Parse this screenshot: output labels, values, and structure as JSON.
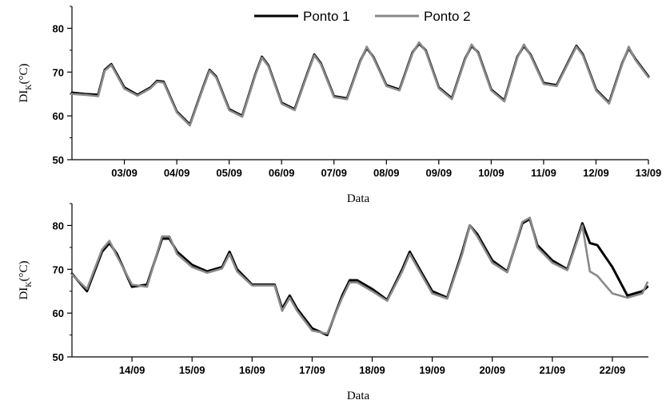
{
  "legend": [
    {
      "name": "Ponto 1",
      "color": "#000000"
    },
    {
      "name": "Ponto 2",
      "color": "#8a8a8a"
    }
  ],
  "chart_data": [
    {
      "type": "line",
      "xlabel": "Data",
      "ylabel": {
        "main": "DI",
        "sub": "K",
        "unit": "(°C)"
      },
      "ylim": [
        50,
        85
      ],
      "yticks": [
        50,
        60,
        70,
        80
      ],
      "xlim": [
        "2012-09-02T00:00",
        "2012-09-13T00:00"
      ],
      "xticks": [
        "03/09",
        "04/09",
        "05/09",
        "06/09",
        "07/09",
        "08/09",
        "09/09",
        "10/09",
        "11/09",
        "12/09",
        "13/09"
      ],
      "series": [
        {
          "name": "Ponto 1",
          "color": "#000000",
          "x": [
            "02/09 00:00",
            "02/09 06:00",
            "02/09 12:00",
            "02/09 15:00",
            "02/09 18:00",
            "03/09 00:00",
            "03/09 06:00",
            "03/09 12:00",
            "03/09 15:00",
            "03/09 18:00",
            "04/09 00:00",
            "04/09 06:00",
            "04/09 12:00",
            "04/09 15:00",
            "04/09 18:00",
            "05/09 00:00",
            "05/09 06:00",
            "05/09 12:00",
            "05/09 15:00",
            "05/09 18:00",
            "06/09 00:00",
            "06/09 06:00",
            "06/09 12:00",
            "06/09 15:00",
            "06/09 18:00",
            "07/09 00:00",
            "07/09 06:00",
            "07/09 12:00",
            "07/09 15:00",
            "07/09 18:00",
            "08/09 00:00",
            "08/09 06:00",
            "08/09 12:00",
            "08/09 15:00",
            "08/09 18:00",
            "09/09 00:00",
            "09/09 06:00",
            "09/09 12:00",
            "09/09 15:00",
            "09/09 18:00",
            "10/09 00:00",
            "10/09 06:00",
            "10/09 12:00",
            "10/09 15:00",
            "10/09 18:00",
            "11/09 00:00",
            "11/09 06:00",
            "11/09 12:00",
            "11/09 15:00",
            "11/09 18:00",
            "12/09 00:00",
            "12/09 06:00",
            "12/09 12:00",
            "12/09 15:00",
            "12/09 18:00",
            "13/09 00:00"
          ],
          "y": [
            65.3,
            65.0,
            64.8,
            70.5,
            71.8,
            66.5,
            64.8,
            66.5,
            68.0,
            67.8,
            61.0,
            58.0,
            66.5,
            70.5,
            69.0,
            61.5,
            60.0,
            69.5,
            73.5,
            71.5,
            63.0,
            61.5,
            70.0,
            74.0,
            72.0,
            64.5,
            64.0,
            72.5,
            75.5,
            73.5,
            67.0,
            66.0,
            74.5,
            76.5,
            75.0,
            66.5,
            64.0,
            73.0,
            76.0,
            74.5,
            66.0,
            63.5,
            73.5,
            76.0,
            74.0,
            67.5,
            67.0,
            73.0,
            76.0,
            74.0,
            66.0,
            63.0,
            72.0,
            75.5,
            73.0,
            69.0
          ]
        },
        {
          "name": "Ponto 2",
          "color": "#8a8a8a",
          "x": [
            "02/09 00:00",
            "02/09 06:00",
            "02/09 12:00",
            "02/09 15:00",
            "02/09 18:00",
            "03/09 00:00",
            "03/09 06:00",
            "03/09 12:00",
            "03/09 15:00",
            "03/09 18:00",
            "04/09 00:00",
            "04/09 06:00",
            "04/09 12:00",
            "04/09 15:00",
            "04/09 18:00",
            "05/09 00:00",
            "05/09 06:00",
            "05/09 12:00",
            "05/09 15:00",
            "05/09 18:00",
            "06/09 00:00",
            "06/09 06:00",
            "06/09 12:00",
            "06/09 15:00",
            "06/09 18:00",
            "07/09 00:00",
            "07/09 06:00",
            "07/09 12:00",
            "07/09 15:00",
            "07/09 18:00",
            "08/09 00:00",
            "08/09 06:00",
            "08/09 12:00",
            "08/09 15:00",
            "08/09 18:00",
            "09/09 00:00",
            "09/09 06:00",
            "09/09 12:00",
            "09/09 15:00",
            "09/09 18:00",
            "10/09 00:00",
            "10/09 06:00",
            "10/09 12:00",
            "10/09 15:00",
            "10/09 18:00",
            "11/09 00:00",
            "11/09 06:00",
            "11/09 12:00",
            "11/09 15:00",
            "11/09 18:00",
            "12/09 00:00",
            "12/09 06:00",
            "12/09 12:00",
            "12/09 15:00",
            "12/09 18:00",
            "13/09 00:00"
          ],
          "y": [
            65.0,
            64.8,
            64.5,
            70.3,
            71.6,
            66.2,
            64.6,
            66.3,
            67.8,
            67.6,
            60.8,
            57.8,
            66.3,
            70.3,
            68.8,
            61.3,
            59.8,
            69.3,
            73.3,
            71.3,
            62.8,
            61.3,
            69.8,
            73.8,
            71.8,
            64.3,
            63.8,
            72.3,
            75.8,
            73.3,
            66.8,
            65.8,
            74.3,
            76.8,
            74.8,
            66.3,
            63.8,
            72.8,
            76.3,
            74.3,
            65.8,
            63.3,
            73.3,
            76.3,
            73.8,
            67.3,
            66.8,
            72.8,
            75.8,
            73.8,
            65.8,
            62.8,
            71.8,
            75.8,
            72.8,
            68.8
          ]
        }
      ]
    },
    {
      "type": "line",
      "xlabel": "Data",
      "ylabel": {
        "main": "DI",
        "sub": "K",
        "unit": "(°C)"
      },
      "ylim": [
        50,
        85
      ],
      "yticks": [
        50,
        60,
        70,
        80
      ],
      "xlim": [
        "2012-09-13T00:00",
        "2012-09-22T14:24"
      ],
      "xticks": [
        "14/09",
        "15/09",
        "16/09",
        "17/09",
        "18/09",
        "19/09",
        "20/09",
        "21/09",
        "22/09"
      ],
      "series": [
        {
          "name": "Ponto 1",
          "color": "#000000",
          "x": [
            "13/09 00:00",
            "13/09 06:00",
            "13/09 12:00",
            "13/09 15:00",
            "13/09 18:00",
            "14/09 00:00",
            "14/09 06:00",
            "14/09 12:00",
            "14/09 15:00",
            "14/09 18:00",
            "15/09 00:00",
            "15/09 06:00",
            "15/09 12:00",
            "15/09 15:00",
            "15/09 18:00",
            "16/09 00:00",
            "16/09 06:00",
            "16/09 09:00",
            "16/09 12:00",
            "16/09 15:00",
            "16/09 18:00",
            "17/09 00:00",
            "17/09 06:00",
            "17/09 12:00",
            "17/09 15:00",
            "17/09 18:00",
            "18/09 00:00",
            "18/09 06:00",
            "18/09 12:00",
            "18/09 15:00",
            "18/09 18:00",
            "19/09 00:00",
            "19/09 06:00",
            "19/09 12:00",
            "19/09 15:00",
            "19/09 18:00",
            "20/09 00:00",
            "20/09 06:00",
            "20/09 12:00",
            "20/09 15:00",
            "20/09 18:00",
            "21/09 00:00",
            "21/09 06:00",
            "21/09 12:00",
            "21/09 15:00",
            "21/09 18:00",
            "22/09 00:00",
            "22/09 06:00",
            "22/09 12:00",
            "22/09 14:00"
          ],
          "y": [
            69.0,
            65.0,
            74.0,
            76.0,
            73.5,
            66.0,
            66.5,
            77.0,
            77.0,
            74.0,
            71.0,
            69.5,
            70.5,
            74.0,
            70.0,
            66.5,
            66.5,
            66.5,
            61.0,
            64.0,
            61.0,
            56.5,
            55.0,
            64.0,
            67.5,
            67.5,
            65.5,
            63.0,
            70.0,
            74.0,
            71.0,
            65.0,
            63.5,
            74.0,
            80.0,
            78.0,
            72.0,
            69.5,
            80.5,
            81.5,
            75.5,
            72.0,
            70.0,
            80.5,
            76.0,
            75.5,
            70.5,
            64.0,
            65.0,
            66.0
          ]
        },
        {
          "name": "Ponto 2",
          "color": "#8a8a8a",
          "x": [
            "13/09 00:00",
            "13/09 06:00",
            "13/09 12:00",
            "13/09 15:00",
            "13/09 18:00",
            "14/09 00:00",
            "14/09 06:00",
            "14/09 12:00",
            "14/09 15:00",
            "14/09 18:00",
            "15/09 00:00",
            "15/09 06:00",
            "15/09 12:00",
            "15/09 15:00",
            "15/09 18:00",
            "16/09 00:00",
            "16/09 06:00",
            "16/09 09:00",
            "16/09 12:00",
            "16/09 15:00",
            "16/09 18:00",
            "17/09 00:00",
            "17/09 06:00",
            "17/09 12:00",
            "17/09 15:00",
            "17/09 18:00",
            "18/09 00:00",
            "18/09 06:00",
            "18/09 12:00",
            "18/09 15:00",
            "18/09 18:00",
            "19/09 00:00",
            "19/09 06:00",
            "19/09 12:00",
            "19/09 15:00",
            "19/09 18:00",
            "20/09 00:00",
            "20/09 06:00",
            "20/09 12:00",
            "20/09 15:00",
            "20/09 18:00",
            "21/09 00:00",
            "21/09 06:00",
            "21/09 12:00",
            "21/09 15:00",
            "21/09 18:00",
            "22/09 00:00",
            "22/09 06:00",
            "22/09 12:00",
            "22/09 14:00"
          ],
          "y": [
            68.8,
            65.5,
            74.5,
            76.5,
            73.0,
            66.5,
            66.0,
            77.5,
            77.5,
            73.5,
            70.5,
            69.2,
            70.2,
            73.5,
            69.5,
            66.3,
            66.3,
            66.3,
            60.5,
            63.5,
            60.5,
            56.0,
            55.3,
            63.5,
            67.0,
            67.0,
            65.0,
            62.8,
            69.5,
            73.5,
            70.5,
            64.5,
            63.3,
            73.5,
            80.0,
            77.5,
            71.5,
            69.3,
            80.8,
            81.8,
            75.0,
            71.5,
            69.8,
            80.0,
            69.5,
            68.5,
            64.5,
            63.5,
            64.5,
            67.0
          ]
        }
      ]
    }
  ]
}
